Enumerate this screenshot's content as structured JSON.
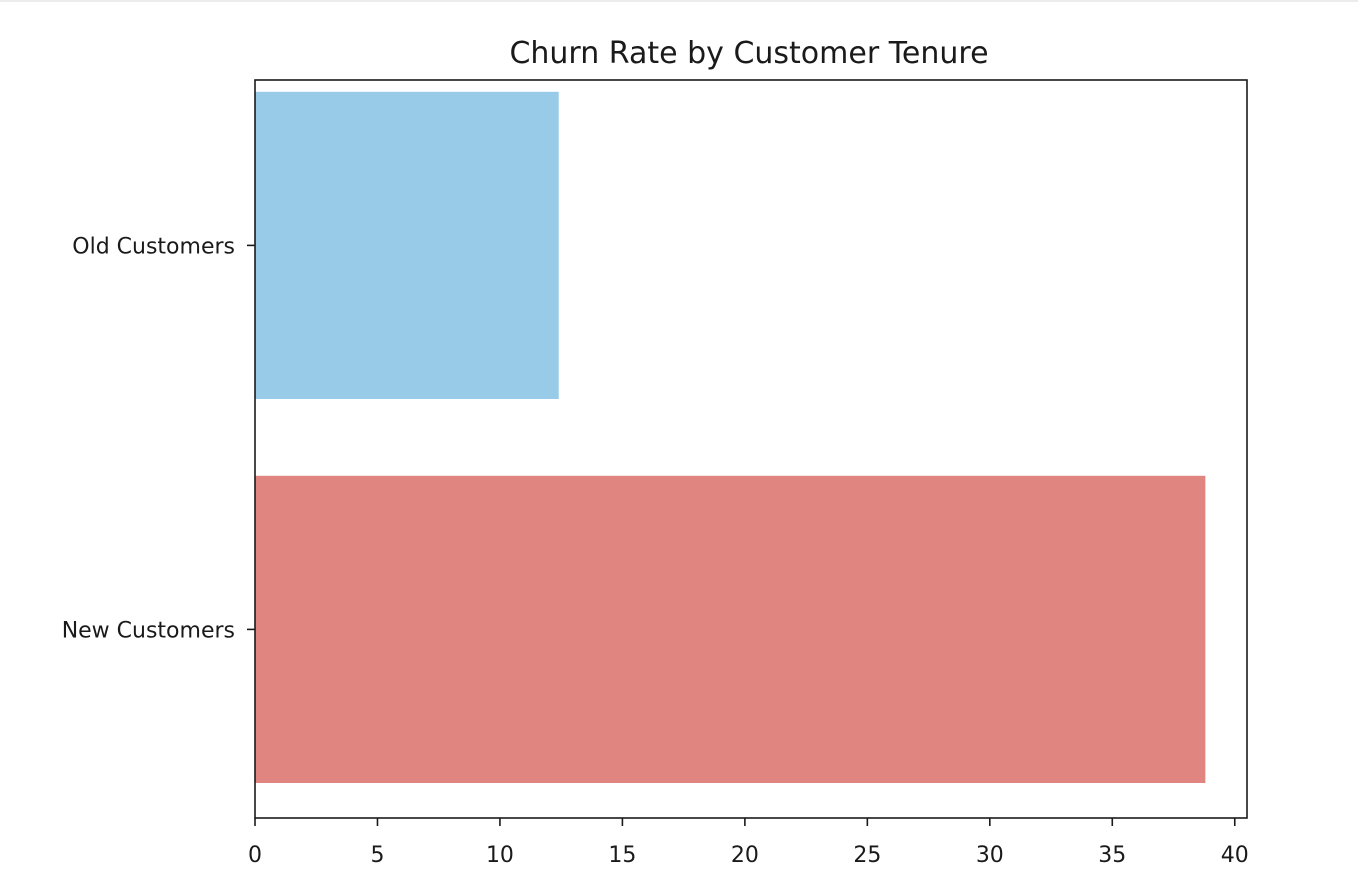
{
  "chart_data": {
    "type": "bar",
    "orientation": "horizontal",
    "title": "Churn Rate by Customer Tenure",
    "xlabel": "",
    "ylabel": "",
    "categories": [
      "New Customers",
      "Old Customers"
    ],
    "values": [
      38.8,
      12.4
    ],
    "colors": [
      "#e08580",
      "#97cbe7"
    ],
    "xlim": [
      0,
      40.5
    ],
    "xticks": [
      0,
      5,
      10,
      15,
      20,
      25,
      30,
      35,
      40
    ],
    "grid": false,
    "legend": "none"
  }
}
